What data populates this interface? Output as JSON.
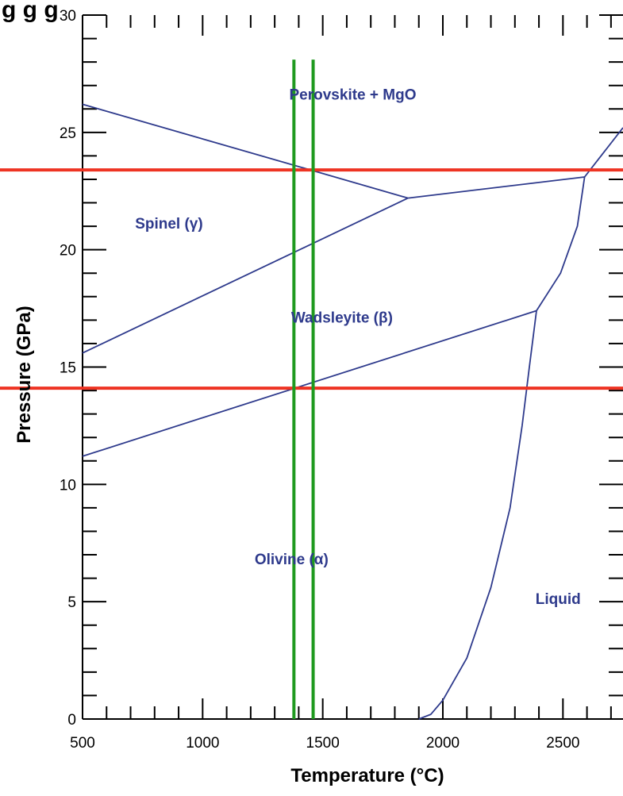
{
  "header_fragment": "g g                  g",
  "chart_data": {
    "type": "line",
    "xlabel": "Temperature (°C)",
    "ylabel": "Pressure (GPa)",
    "xlim": [
      500,
      2750
    ],
    "ylim": [
      0,
      30
    ],
    "x_ticks": [
      500,
      1000,
      1500,
      2000,
      2500
    ],
    "y_ticks": [
      0,
      5,
      10,
      15,
      20,
      25,
      30
    ],
    "x_minor_step": 100,
    "y_minor_step": 1,
    "grid": false,
    "region_labels": [
      {
        "text": "Perovskite + MgO",
        "x": 1625,
        "y": 26.4
      },
      {
        "text": "Spinel (γ)",
        "x": 860,
        "y": 20.9
      },
      {
        "text": "Wadsleyite (β)",
        "x": 1580,
        "y": 16.9
      },
      {
        "text": "Olivine (α)",
        "x": 1370,
        "y": 6.6
      },
      {
        "text": "Liquid",
        "x": 2480,
        "y": 4.9
      }
    ],
    "phase_boundaries": [
      {
        "points": [
          [
            500,
            26.2
          ],
          [
            1855,
            22.2
          ]
        ]
      },
      {
        "points": [
          [
            500,
            15.6
          ],
          [
            1855,
            22.2
          ]
        ]
      },
      {
        "points": [
          [
            1855,
            22.2
          ],
          [
            2590,
            23.1
          ]
        ]
      },
      {
        "points": [
          [
            500,
            11.2
          ],
          [
            2390,
            17.4
          ]
        ]
      },
      {
        "points": [
          [
            2590,
            23.1
          ],
          [
            2750,
            25.2
          ]
        ]
      },
      {
        "points": [
          [
            2390,
            17.4
          ],
          [
            2490,
            19.0
          ],
          [
            2560,
            21.0
          ],
          [
            2590,
            23.1
          ]
        ]
      },
      {
        "points": [
          [
            1900,
            0.0
          ],
          [
            1950,
            0.2
          ],
          [
            2000,
            0.8
          ],
          [
            2100,
            2.6
          ],
          [
            2200,
            5.6
          ],
          [
            2280,
            9.0
          ],
          [
            2330,
            12.5
          ],
          [
            2360,
            15.0
          ],
          [
            2390,
            17.4
          ]
        ]
      }
    ],
    "highlight_lines": [
      {
        "orientation": "horizontal",
        "value": 23.4,
        "color": "#ee3322"
      },
      {
        "orientation": "horizontal",
        "value": 14.1,
        "color": "#ee3322"
      },
      {
        "orientation": "vertical",
        "value": 1380,
        "color": "#1f9a1f",
        "range": [
          0,
          28.1
        ]
      },
      {
        "orientation": "vertical",
        "value": 1460,
        "color": "#1f9a1f",
        "range": [
          0,
          28.1
        ]
      }
    ],
    "boundary_color": "#2e3a8c"
  }
}
